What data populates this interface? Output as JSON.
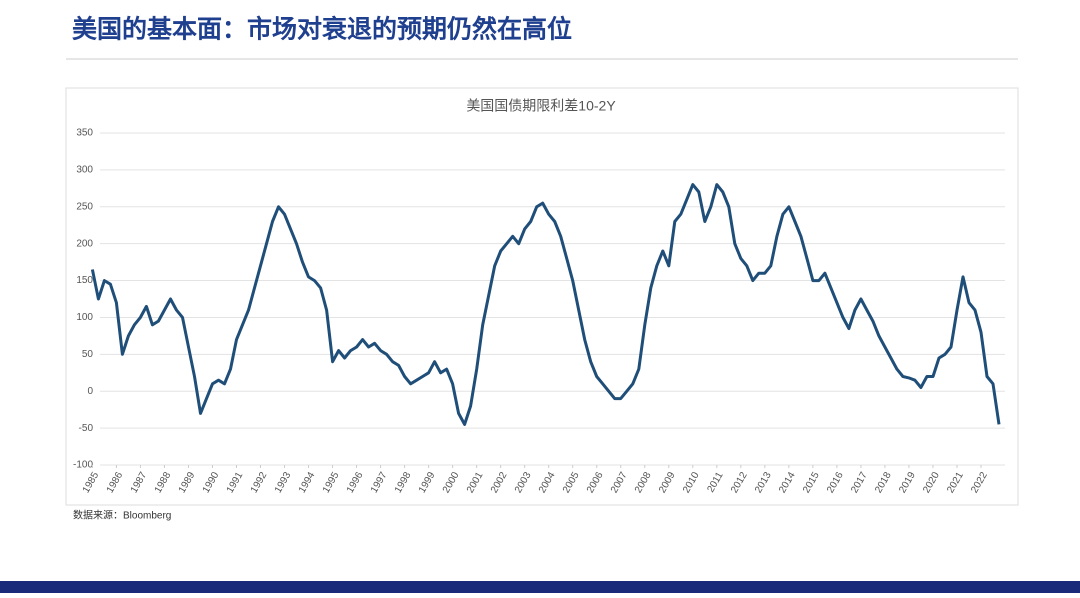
{
  "slide_title": "美国的基本面：市场对衰退的预期仍然在高位",
  "source": "数据来源：Bloomberg",
  "chart_data": {
    "type": "line",
    "title": "美国国债期限利差10-2Y",
    "x": [
      1985.0,
      1985.25,
      1985.5,
      1985.75,
      1986.0,
      1986.25,
      1986.5,
      1986.75,
      1987.0,
      1987.25,
      1987.5,
      1987.75,
      1988.0,
      1988.25,
      1988.5,
      1988.75,
      1989.0,
      1989.25,
      1989.5,
      1989.75,
      1990.0,
      1990.25,
      1990.5,
      1990.75,
      1991.0,
      1991.25,
      1991.5,
      1991.75,
      1992.0,
      1992.25,
      1992.5,
      1992.75,
      1993.0,
      1993.25,
      1993.5,
      1993.75,
      1994.0,
      1994.25,
      1994.5,
      1994.75,
      1995.0,
      1995.25,
      1995.5,
      1995.75,
      1996.0,
      1996.25,
      1996.5,
      1996.75,
      1997.0,
      1997.25,
      1997.5,
      1997.75,
      1998.0,
      1998.25,
      1998.5,
      1998.75,
      1999.0,
      1999.25,
      1999.5,
      1999.75,
      2000.0,
      2000.25,
      2000.5,
      2000.75,
      2001.0,
      2001.25,
      2001.5,
      2001.75,
      2002.0,
      2002.25,
      2002.5,
      2002.75,
      2003.0,
      2003.25,
      2003.5,
      2003.75,
      2004.0,
      2004.25,
      2004.5,
      2004.75,
      2005.0,
      2005.25,
      2005.5,
      2005.75,
      2006.0,
      2006.25,
      2006.5,
      2006.75,
      2007.0,
      2007.25,
      2007.5,
      2007.75,
      2008.0,
      2008.25,
      2008.5,
      2008.75,
      2009.0,
      2009.25,
      2009.5,
      2009.75,
      2010.0,
      2010.25,
      2010.5,
      2010.75,
      2011.0,
      2011.25,
      2011.5,
      2011.75,
      2012.0,
      2012.25,
      2012.5,
      2012.75,
      2013.0,
      2013.25,
      2013.5,
      2013.75,
      2014.0,
      2014.25,
      2014.5,
      2014.75,
      2015.0,
      2015.25,
      2015.5,
      2015.75,
      2016.0,
      2016.25,
      2016.5,
      2016.75,
      2017.0,
      2017.25,
      2017.5,
      2017.75,
      2018.0,
      2018.25,
      2018.5,
      2018.75,
      2019.0,
      2019.25,
      2019.5,
      2019.75,
      2020.0,
      2020.25,
      2020.5,
      2020.75,
      2021.0,
      2021.25,
      2021.5,
      2021.75,
      2022.0,
      2022.25,
      2022.5,
      2022.75
    ],
    "series": [
      {
        "name": "10-2Y",
        "color": "#1f4e79",
        "values": [
          165,
          125,
          150,
          145,
          120,
          50,
          75,
          90,
          100,
          115,
          90,
          95,
          110,
          125,
          110,
          100,
          60,
          20,
          -30,
          -10,
          10,
          15,
          10,
          30,
          70,
          90,
          110,
          140,
          170,
          200,
          230,
          250,
          240,
          220,
          200,
          175,
          155,
          150,
          140,
          110,
          40,
          55,
          45,
          55,
          60,
          70,
          60,
          65,
          55,
          50,
          40,
          35,
          20,
          10,
          15,
          20,
          25,
          40,
          25,
          30,
          10,
          -30,
          -45,
          -20,
          30,
          90,
          130,
          170,
          190,
          200,
          210,
          200,
          220,
          230,
          250,
          255,
          240,
          230,
          210,
          180,
          150,
          110,
          70,
          40,
          20,
          10,
          0,
          -10,
          -10,
          0,
          10,
          30,
          90,
          140,
          170,
          190,
          170,
          230,
          240,
          260,
          280,
          270,
          230,
          250,
          280,
          270,
          250,
          200,
          180,
          170,
          150,
          160,
          160,
          170,
          210,
          240,
          250,
          230,
          210,
          180,
          150,
          150,
          160,
          140,
          120,
          100,
          85,
          110,
          125,
          110,
          95,
          75,
          60,
          45,
          30,
          20,
          18,
          15,
          5,
          20,
          20,
          45,
          50,
          60,
          110,
          155,
          120,
          110,
          80,
          20,
          10,
          -45
        ]
      }
    ],
    "xlim": [
      1984.9,
      2023
    ],
    "xticks": [
      1985,
      1986,
      1987,
      1988,
      1989,
      1990,
      1991,
      1992,
      1993,
      1994,
      1995,
      1996,
      1997,
      1998,
      1999,
      2000,
      2001,
      2002,
      2003,
      2004,
      2005,
      2006,
      2007,
      2008,
      2009,
      2010,
      2011,
      2012,
      2013,
      2014,
      2015,
      2016,
      2017,
      2018,
      2019,
      2020,
      2021,
      2022
    ],
    "ylim": [
      -100,
      350
    ],
    "yticks": [
      -100,
      -50,
      0,
      50,
      100,
      150,
      200,
      250,
      300,
      350
    ],
    "grid": true
  }
}
